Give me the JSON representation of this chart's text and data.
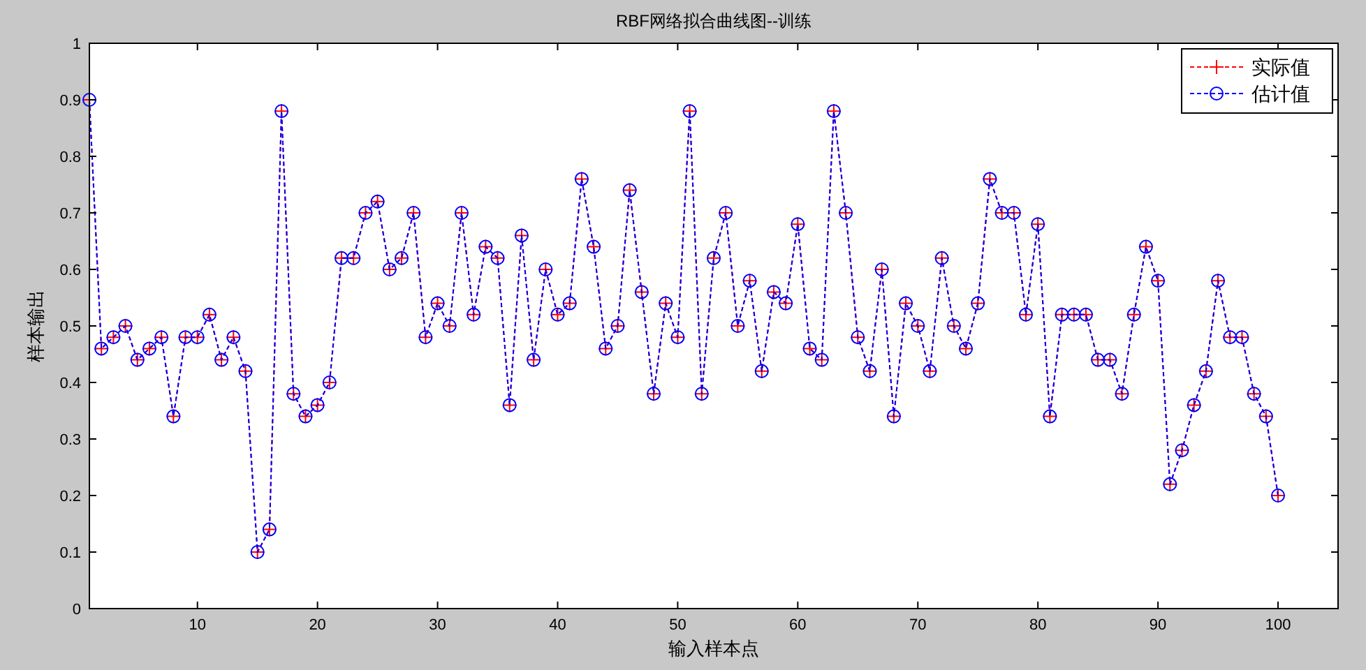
{
  "chart_data": {
    "type": "line",
    "title": "RBF网络拟合曲线图--训练",
    "xlabel": "输入样本点",
    "ylabel": "样本输出",
    "x": [
      1,
      2,
      3,
      4,
      5,
      6,
      7,
      8,
      9,
      10,
      11,
      12,
      13,
      14,
      15,
      16,
      17,
      18,
      19,
      20,
      21,
      22,
      23,
      24,
      25,
      26,
      27,
      28,
      29,
      30,
      31,
      32,
      33,
      34,
      35,
      36,
      37,
      38,
      39,
      40,
      41,
      42,
      43,
      44,
      45,
      46,
      47,
      48,
      49,
      50,
      51,
      52,
      53,
      54,
      55,
      56,
      57,
      58,
      59,
      60,
      61,
      62,
      63,
      64,
      65,
      66,
      67,
      68,
      69,
      70,
      71,
      72,
      73,
      74,
      75,
      76,
      77,
      78,
      79,
      80,
      81,
      82,
      83,
      84,
      85,
      86,
      87,
      88,
      89,
      90,
      91,
      92,
      93,
      94,
      95,
      96,
      97,
      98,
      99,
      100
    ],
    "series": [
      {
        "name": "实际值",
        "color": "#ff0000",
        "marker": "cross",
        "line_style": "dashed",
        "values": [
          0.9,
          0.46,
          0.48,
          0.5,
          0.44,
          0.46,
          0.48,
          0.34,
          0.48,
          0.48,
          0.52,
          0.44,
          0.48,
          0.42,
          0.1,
          0.14,
          0.88,
          0.38,
          0.34,
          0.36,
          0.4,
          0.62,
          0.62,
          0.7,
          0.72,
          0.6,
          0.62,
          0.7,
          0.48,
          0.54,
          0.5,
          0.7,
          0.52,
          0.64,
          0.62,
          0.36,
          0.66,
          0.44,
          0.6,
          0.52,
          0.54,
          0.76,
          0.64,
          0.46,
          0.5,
          0.74,
          0.56,
          0.38,
          0.54,
          0.48,
          0.88,
          0.38,
          0.62,
          0.7,
          0.5,
          0.58,
          0.42,
          0.56,
          0.54,
          0.68,
          0.46,
          0.44,
          0.88,
          0.7,
          0.48,
          0.42,
          0.6,
          0.34,
          0.54,
          0.5,
          0.42,
          0.62,
          0.5,
          0.46,
          0.54,
          0.76,
          0.7,
          0.7,
          0.52,
          0.68,
          0.34,
          0.52,
          0.52,
          0.52,
          0.44,
          0.44,
          0.38,
          0.52,
          0.64,
          0.58,
          0.22,
          0.28,
          0.36,
          0.42,
          0.58,
          0.48,
          0.48,
          0.38,
          0.34,
          0.2
        ]
      },
      {
        "name": "估计值",
        "color": "#0000ff",
        "marker": "circle",
        "line_style": "dashed",
        "values": [
          0.9,
          0.46,
          0.48,
          0.5,
          0.44,
          0.46,
          0.48,
          0.34,
          0.48,
          0.48,
          0.52,
          0.44,
          0.48,
          0.42,
          0.1,
          0.14,
          0.88,
          0.38,
          0.34,
          0.36,
          0.4,
          0.62,
          0.62,
          0.7,
          0.72,
          0.6,
          0.62,
          0.7,
          0.48,
          0.54,
          0.5,
          0.7,
          0.52,
          0.64,
          0.62,
          0.36,
          0.66,
          0.44,
          0.6,
          0.52,
          0.54,
          0.76,
          0.64,
          0.46,
          0.5,
          0.74,
          0.56,
          0.38,
          0.54,
          0.48,
          0.88,
          0.38,
          0.62,
          0.7,
          0.5,
          0.58,
          0.42,
          0.56,
          0.54,
          0.68,
          0.46,
          0.44,
          0.88,
          0.7,
          0.48,
          0.42,
          0.6,
          0.34,
          0.54,
          0.5,
          0.42,
          0.62,
          0.5,
          0.46,
          0.54,
          0.76,
          0.7,
          0.7,
          0.52,
          0.68,
          0.34,
          0.52,
          0.52,
          0.52,
          0.44,
          0.44,
          0.38,
          0.52,
          0.64,
          0.58,
          0.22,
          0.28,
          0.36,
          0.42,
          0.58,
          0.48,
          0.48,
          0.38,
          0.34,
          0.2
        ]
      }
    ],
    "xlim": [
      1,
      105
    ],
    "xticks": [
      10,
      20,
      30,
      40,
      50,
      60,
      70,
      80,
      90,
      100
    ],
    "ylim": [
      0,
      1
    ],
    "yticks": [
      0,
      0.1,
      0.2,
      0.3,
      0.4,
      0.5,
      0.6,
      0.7,
      0.8,
      0.9,
      1
    ],
    "legend": "top right",
    "grid": false
  }
}
